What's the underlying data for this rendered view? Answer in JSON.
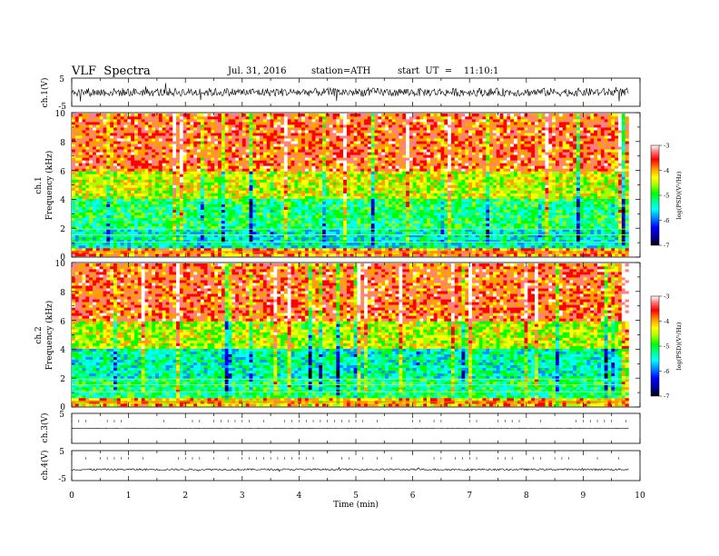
{
  "header": {
    "title": "VLF  Spectra",
    "date": "Jul. 31, 2016",
    "station": "station=ATH",
    "start": "start  UT  =    11:10:1"
  },
  "colors": {
    "spectrum_scale": [
      "#000000",
      "#00009a",
      "#0000ff",
      "#0090ff",
      "#00ffff",
      "#00ff90",
      "#00ff00",
      "#a0ff00",
      "#ffff00",
      "#ffa000",
      "#ff0000",
      "#ff8080",
      "#ffffff"
    ],
    "trace": "#000000",
    "background": "#ffffff"
  },
  "chart_data": [
    {
      "type": "line",
      "panel": "ch1-waveform",
      "ylabel": "ch.1(V)",
      "ylim": [
        -5,
        5
      ],
      "yticks": [
        "5",
        "-5"
      ],
      "xlim": [
        0,
        10
      ],
      "description_values": {
        "baseline": 0,
        "typical_amplitude": 1.5
      }
    },
    {
      "type": "heatmap",
      "panel": "ch1-spectrogram",
      "ylabel": "ch.1\nFrequency  (kHz)",
      "ylabel_lines": [
        "ch.1",
        "Frequency  (kHz)"
      ],
      "ylim": [
        0,
        10
      ],
      "yticks": [
        "0",
        "2",
        "4",
        "6",
        "8",
        "10"
      ],
      "xlim": [
        0,
        9.8
      ],
      "colorbar": {
        "label": "log(PSD)(V²/Hz)",
        "range": [
          -7,
          -3
        ],
        "ticks": [
          "-3",
          "-4",
          "-5",
          "-6",
          "-7"
        ]
      },
      "bands_kHz": [
        {
          "range": [
            0,
            0.5
          ],
          "logPSD": -4.0
        },
        {
          "range": [
            0.5,
            2
          ],
          "logPSD": -5.5
        },
        {
          "range": [
            2,
            4
          ],
          "logPSD": -5.2
        },
        {
          "range": [
            4,
            6
          ],
          "logPSD": -4.5
        },
        {
          "range": [
            6,
            10
          ],
          "logPSD": -3.8
        }
      ]
    },
    {
      "type": "heatmap",
      "panel": "ch2-spectrogram",
      "ylabel": "ch.2\nFrequency  (kHz)",
      "ylabel_lines": [
        "ch.2",
        "Frequency  (kHz)"
      ],
      "ylim": [
        0,
        10
      ],
      "yticks": [
        "0",
        "2",
        "4",
        "6",
        "8",
        "10"
      ],
      "xlim": [
        0,
        9.8
      ],
      "colorbar": {
        "label": "log(PSD)(V²/Hz)",
        "range": [
          -7,
          -3
        ],
        "ticks": [
          "-3",
          "-4",
          "-5",
          "-6",
          "-7"
        ]
      },
      "bands_kHz": [
        {
          "range": [
            0,
            0.5
          ],
          "logPSD": -4.2
        },
        {
          "range": [
            0.5,
            2
          ],
          "logPSD": -5.2
        },
        {
          "range": [
            2,
            4
          ],
          "logPSD": -5.4
        },
        {
          "range": [
            4,
            6
          ],
          "logPSD": -4.6
        },
        {
          "range": [
            6,
            10
          ],
          "logPSD": -3.8
        }
      ]
    },
    {
      "type": "line",
      "panel": "ch3-waveform",
      "ylabel": "ch.3(V)",
      "ylim": [
        -5,
        5
      ],
      "yticks": [
        "5"
      ],
      "xlim": [
        0,
        10
      ],
      "description_values": {
        "baseline": 0,
        "typical_amplitude": 0.05
      }
    },
    {
      "type": "line",
      "panel": "ch4-waveform",
      "ylabel": "ch.4(V)",
      "ylim": [
        -5,
        5
      ],
      "yticks": [
        "5",
        "-5"
      ],
      "xlim": [
        0,
        10
      ],
      "description_values": {
        "baseline": -1.3,
        "typical_amplitude": 0.3
      }
    }
  ],
  "xaxis": {
    "label": "Time  (min)",
    "ticks": [
      "0",
      "1",
      "2",
      "3",
      "4",
      "5",
      "6",
      "7",
      "8",
      "9",
      "10"
    ],
    "range": [
      0,
      10
    ]
  }
}
